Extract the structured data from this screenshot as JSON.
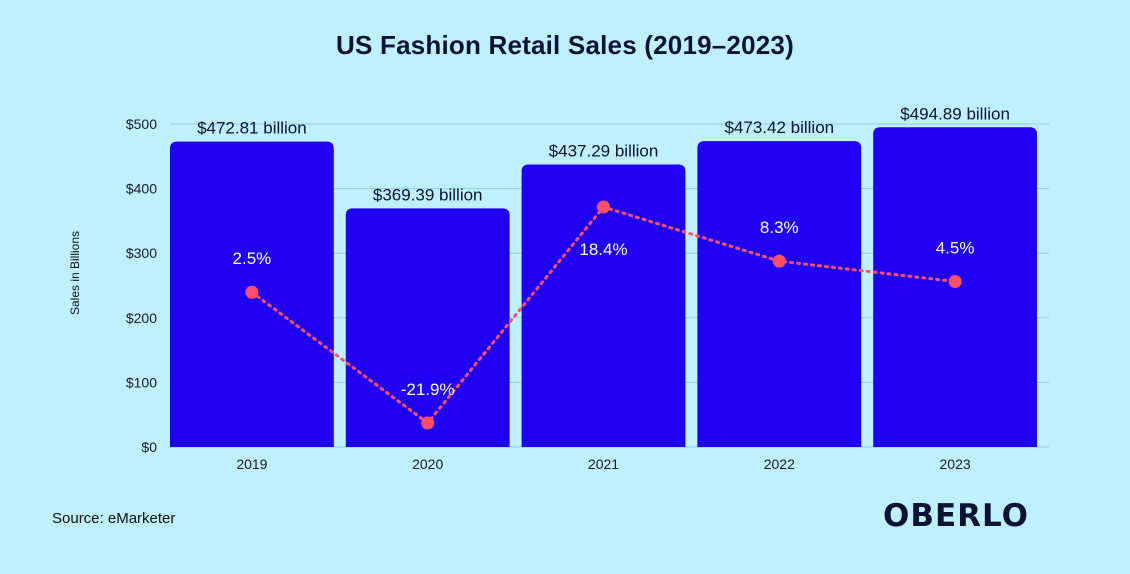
{
  "chart_data": {
    "type": "bar",
    "title": "US Fashion Retail Sales (2019–2023)",
    "ylabel": "Sales in Billions",
    "xlabel": "",
    "categories": [
      "2019",
      "2020",
      "2021",
      "2022",
      "2023"
    ],
    "series": [
      {
        "values": [
          472.81,
          369.39,
          437.29,
          473.42,
          494.89
        ],
        "labels": [
          "$472.81 billion",
          "$369.39 billion",
          "$437.29 billion",
          "$473.42 billion",
          "$494.89 billion"
        ],
        "color": "#2000f0"
      },
      {
        "type": "line",
        "values": [
          2.5,
          -21.9,
          18.4,
          8.3,
          4.5
        ],
        "labels": [
          "2.5%",
          "-21.9%",
          "18.4%",
          "8.3%",
          "4.5%"
        ],
        "color": "#ff4f6b"
      }
    ],
    "ylim": [
      0,
      500
    ],
    "yticks": [
      0,
      100,
      200,
      300,
      400,
      500
    ],
    "ytick_labels": [
      "$0",
      "$100",
      "$200",
      "$300",
      "$400",
      "$500"
    ],
    "grid": true,
    "legend": "none"
  },
  "source": "Source: eMarketer",
  "brand": "OBERLO",
  "colors": {
    "background": "#bff0fd",
    "bar": "#2000f0",
    "line": "#ff4f6b",
    "grid": "#8fcfe3",
    "text": "#0c1135"
  }
}
